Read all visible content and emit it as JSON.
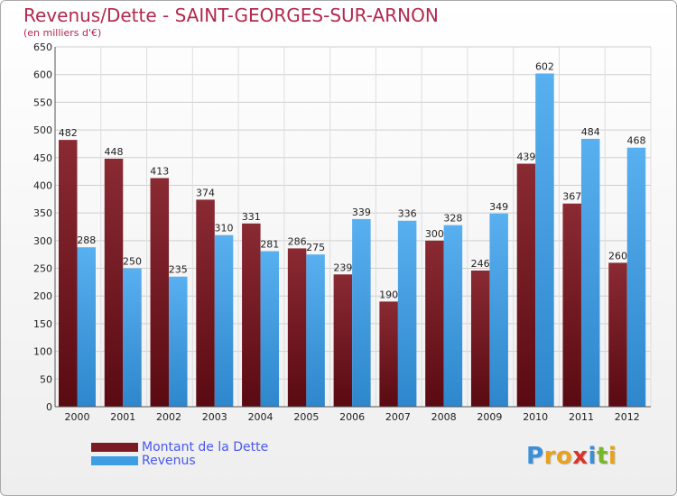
{
  "chart_data": {
    "type": "bar",
    "title": "Revenus/Dette - SAINT-GEORGES-SUR-ARNON",
    "subtitle": "(en milliers d'€)",
    "categories": [
      "2000",
      "2001",
      "2002",
      "2003",
      "2004",
      "2005",
      "2006",
      "2007",
      "2008",
      "2009",
      "2010",
      "2011",
      "2012"
    ],
    "series": [
      {
        "name": "Montant de la Dette",
        "color": "#7b1a24",
        "values": [
          482,
          448,
          413,
          374,
          331,
          286,
          239,
          190,
          300,
          246,
          439,
          367,
          260
        ]
      },
      {
        "name": "Revenus",
        "color": "#3d9ee6",
        "values": [
          288,
          250,
          235,
          310,
          281,
          275,
          339,
          336,
          328,
          349,
          602,
          484,
          468
        ]
      }
    ],
    "ylim": [
      0,
      650
    ],
    "yticks": [
      0,
      50,
      100,
      150,
      200,
      250,
      300,
      350,
      400,
      450,
      500,
      550,
      600,
      650
    ],
    "grid": true,
    "legend_position": "bottom-left",
    "data_labels": true
  },
  "logo": {
    "letters": [
      "P",
      "r",
      "o",
      "x",
      "i",
      "t",
      "i"
    ],
    "colors": [
      "#3a8fd8",
      "#e8a21c",
      "#e8a21c",
      "#d8352a",
      "#3a8fd8",
      "#7ab52e",
      "#e8a21c"
    ]
  }
}
